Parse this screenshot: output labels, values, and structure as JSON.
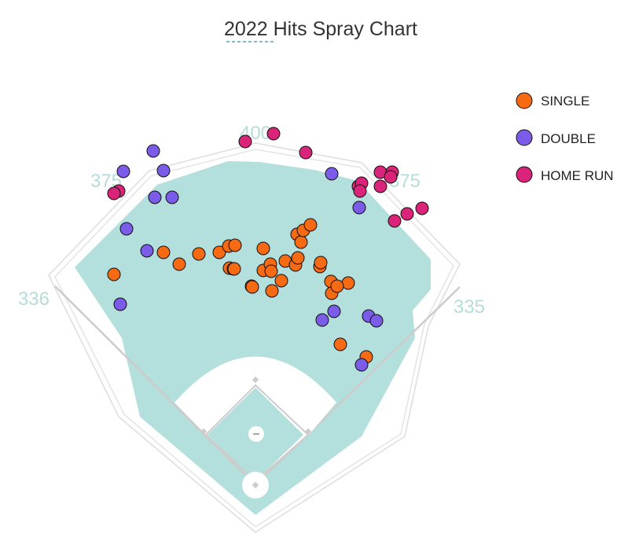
{
  "chart_data": {
    "type": "scatter",
    "title": "2022 Hits Spray Chart",
    "distance_labels": [
      "336",
      "375",
      "400",
      "375",
      "335"
    ],
    "legend_placement": "top-right",
    "colors": {
      "single": "#f56a12",
      "double": "#7b5ce8",
      "home_run": "#d9247a",
      "field": "#b3dfdc",
      "infield_dirt": "#ffffff",
      "wall": "#dddddd",
      "dist_label": "#b7dcda",
      "title_underline": "#5a9fb0"
    },
    "legend": [
      {
        "key": "single",
        "label": "SINGLE"
      },
      {
        "key": "double",
        "label": "DOUBLE"
      },
      {
        "key": "home_run",
        "label": "HOME RUN"
      }
    ],
    "series": [
      {
        "key": "single",
        "name": "SINGLE",
        "points": [
          [
            -180,
            268
          ],
          [
            -117,
            296
          ],
          [
            -97,
            281
          ],
          [
            -72,
            294
          ],
          [
            -46,
            296
          ],
          [
            -34,
            304
          ],
          [
            -33,
            276
          ],
          [
            -28,
            275
          ],
          [
            -27,
            275
          ],
          [
            -26,
            305
          ],
          [
            -5,
            253
          ],
          [
            -4,
            252
          ],
          [
            10,
            301
          ],
          [
            10,
            273
          ],
          [
            19,
            281
          ],
          [
            20,
            272
          ],
          [
            38,
            285
          ],
          [
            33,
            260
          ],
          [
            21,
            247
          ],
          [
            51,
            280
          ],
          [
            54,
            289
          ],
          [
            53,
            319
          ],
          [
            58,
            309
          ],
          [
            61,
            324
          ],
          [
            96,
            259
          ],
          [
            97,
            244
          ],
          [
            70,
            331
          ],
          [
            82,
            278
          ],
          [
            83,
            283
          ],
          [
            118,
            257
          ],
          [
            104,
            253
          ],
          [
            141,
            163
          ],
          [
            108,
            179
          ]
        ]
      },
      {
        "key": "double",
        "name": "DOUBLE",
        "points": [
          [
            -164,
            326
          ],
          [
            -168,
            399
          ],
          [
            -130,
            425
          ],
          [
            -117,
            400
          ],
          [
            -128,
            366
          ],
          [
            -106,
            366
          ],
          [
            -138,
            298
          ],
          [
            -172,
            230
          ],
          [
            97,
            396
          ],
          [
            144,
            215
          ],
          [
            154,
            209
          ],
          [
            135,
            153
          ],
          [
            132,
            353
          ],
          [
            100,
            221
          ],
          [
            85,
            210
          ]
        ]
      },
      {
        "key": "home_run",
        "name": "HOME RUN",
        "points": [
          [
            -174,
            374
          ],
          [
            -180,
            371
          ],
          [
            -13,
            437
          ],
          [
            23,
            447
          ],
          [
            64,
            423
          ],
          [
            159,
            398
          ],
          [
            174,
            398
          ],
          [
            172,
            392
          ],
          [
            159,
            380
          ],
          [
            131,
            380
          ],
          [
            135,
            384
          ],
          [
            133,
            374
          ],
          [
            177,
            336
          ],
          [
            193,
            345
          ],
          [
            212,
            352
          ]
        ]
      }
    ]
  }
}
